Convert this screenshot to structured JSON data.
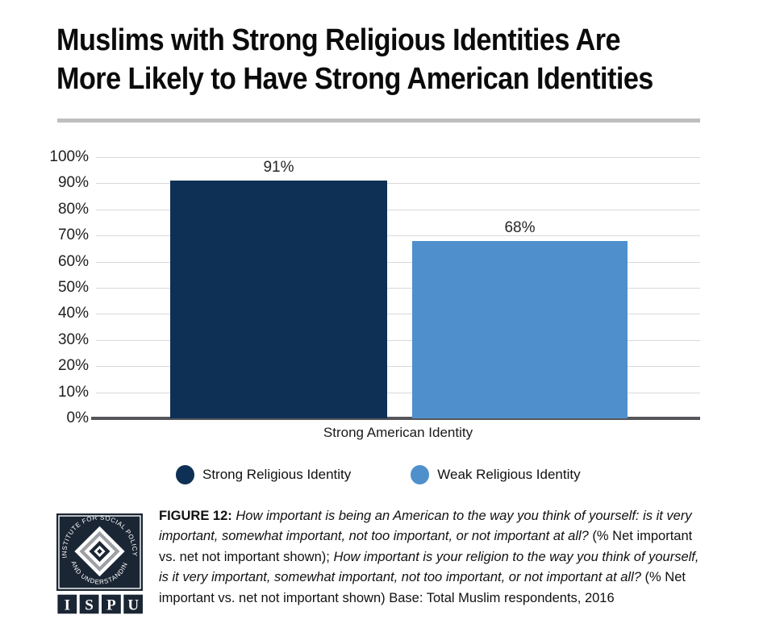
{
  "title": {
    "line1": "Muslims with Strong Religious Identities Are",
    "line2": "More Likely to Have Strong American Identities"
  },
  "chart_data": {
    "type": "bar",
    "title": "Muslims with Strong Religious Identities Are More Likely to Have Strong American Identities",
    "categories": [
      "Strong American Identity"
    ],
    "series": [
      {
        "name": "Strong Religious Identity",
        "values": [
          91
        ],
        "color": "#0E3055"
      },
      {
        "name": "Weak Religious Identity",
        "values": [
          68
        ],
        "color": "#4F90CC"
      }
    ],
    "value_labels": [
      "91%",
      "68%"
    ],
    "xlabel": "Strong American Identity",
    "ylabel": "",
    "y_ticks": [
      "100%",
      "90%",
      "80%",
      "70%",
      "60%",
      "50%",
      "40%",
      "30%",
      "20%",
      "10%",
      "0%"
    ],
    "ylim": [
      0,
      100
    ],
    "grid": true,
    "legend_position": "bottom"
  },
  "legend": {
    "items": [
      {
        "label": "Strong Religious Identity",
        "color": "#0E3055"
      },
      {
        "label": "Weak Religious Identity",
        "color": "#4F90CC"
      }
    ]
  },
  "caption": {
    "segments": [
      {
        "text": "FIGURE 12: ",
        "style": "bold"
      },
      {
        "text": "How important is being an American to the way you think of yourself: is it very important, somewhat important, not too important, or not important at all?",
        "style": "italic"
      },
      {
        "text": " (% Net important vs. net not important shown); ",
        "style": "normal"
      },
      {
        "text": "How important is your religion to the way you think of yourself, is it very important, somewhat important, not too important, or not important at all?",
        "style": "italic"
      },
      {
        "text": " (% Net important vs. net not important shown) Base: Total Muslim respondents, 2016",
        "style": "normal"
      }
    ]
  },
  "logo": {
    "arc_top": "INSTITUTE FOR SOCIAL POLICY",
    "arc_bottom": "AND UNDERSTANDING",
    "letters": [
      "I",
      "S",
      "P",
      "U"
    ],
    "navy": "#1B2634",
    "gray": "#9DA0A4"
  },
  "colors": {
    "gridline": "#D9D9D9",
    "axis_line": "#55565A",
    "divider": "#BFBFBF"
  }
}
